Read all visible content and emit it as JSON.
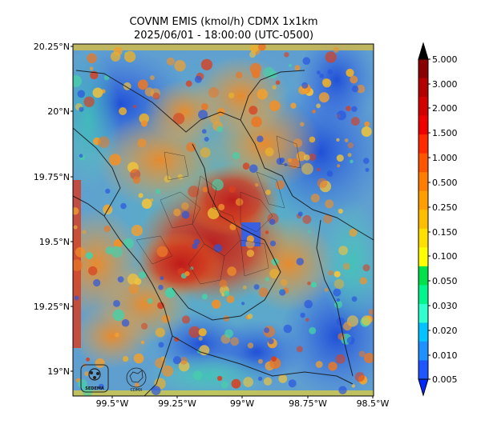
{
  "map": {
    "title_line1": "COVNM EMIS (kmol/h) CDMX 1x1km",
    "title_line2": "2025/06/01 - 18:00:00 (UTC-0500)",
    "lat_ticks": [
      "20.25°N",
      "20°N",
      "19.75°N",
      "19.5°N",
      "19.25°N",
      "19°N"
    ],
    "lon_ticks": [
      "99.5°W",
      "99.25°W",
      "99°W",
      "98.75°W",
      "98.5°W"
    ],
    "colorbar": {
      "labels": [
        "5.000",
        "3.000",
        "2.000",
        "1.500",
        "1.000",
        "0.500",
        "0.250",
        "0.150",
        "0.100",
        "0.050",
        "0.030",
        "0.020",
        "0.010",
        "0.005"
      ],
      "colors_top_to_bottom": [
        "#8b0000",
        "#b30000",
        "#d40000",
        "#ee0000",
        "#ff2a00",
        "#ff5400",
        "#ff7d00",
        "#ff9f00",
        "#ffbf00",
        "#ffe000",
        "#ffff00",
        "#00e04a",
        "#00f58d",
        "#30ffd0",
        "#00c3ff",
        "#1f90ff",
        "#1f55ff",
        "#0026ff"
      ]
    },
    "logos": [
      "SEDEMA",
      "CDMX"
    ]
  }
}
